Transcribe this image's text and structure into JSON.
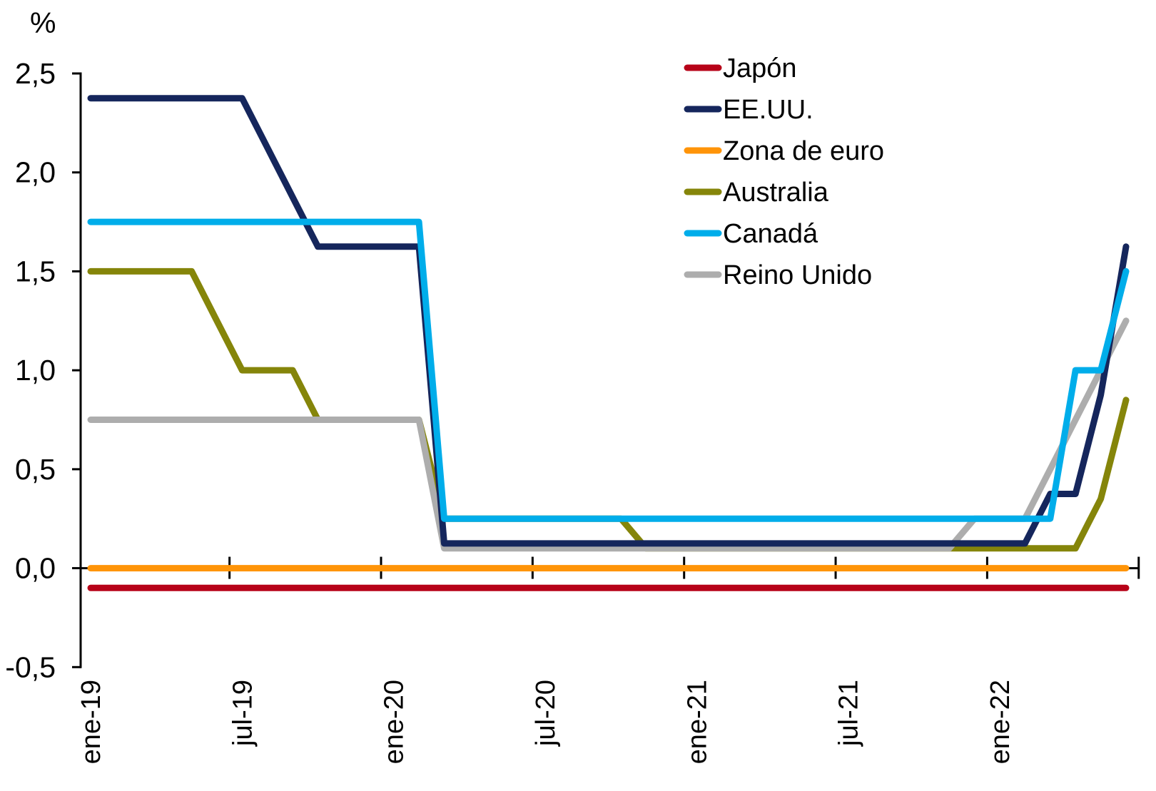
{
  "chart_data": {
    "type": "line",
    "title": "",
    "unit_label": "%",
    "xlabel": "",
    "ylabel": "%",
    "ylim": [
      -0.5,
      2.5
    ],
    "grid": false,
    "legend_position": "top-right-inside",
    "number_format": "comma-decimal",
    "y_ticks": [
      {
        "label": "2,5",
        "value": 2.5
      },
      {
        "label": "2,0",
        "value": 2.0
      },
      {
        "label": "1,5",
        "value": 1.5
      },
      {
        "label": "1,0",
        "value": 1.0
      },
      {
        "label": "0,5",
        "value": 0.5
      },
      {
        "label": "0,0",
        "value": 0.0
      },
      {
        "label": "-0,5",
        "value": -0.5
      }
    ],
    "x_tick_labels": [
      "ene-19",
      "jul-19",
      "ene-20",
      "jul-20",
      "ene-21",
      "jul-21",
      "ene-22"
    ],
    "months": [
      "ene-19",
      "feb-19",
      "mar-19",
      "abr-19",
      "may-19",
      "jun-19",
      "jul-19",
      "ago-19",
      "sep-19",
      "oct-19",
      "nov-19",
      "dic-19",
      "ene-20",
      "feb-20",
      "mar-20",
      "abr-20",
      "may-20",
      "jun-20",
      "jul-20",
      "ago-20",
      "sep-20",
      "oct-20",
      "nov-20",
      "dic-20",
      "ene-21",
      "feb-21",
      "mar-21",
      "abr-21",
      "may-21",
      "jun-21",
      "jul-21",
      "ago-21",
      "sep-21",
      "oct-21",
      "nov-21",
      "dic-21",
      "ene-22",
      "feb-22",
      "mar-22",
      "abr-22",
      "may-22",
      "jun-22"
    ],
    "series": [
      {
        "name": "Japón",
        "color": "#B70218",
        "values": [
          -0.1,
          -0.1,
          -0.1,
          -0.1,
          -0.1,
          -0.1,
          -0.1,
          -0.1,
          -0.1,
          -0.1,
          -0.1,
          -0.1,
          -0.1,
          -0.1,
          -0.1,
          -0.1,
          -0.1,
          -0.1,
          -0.1,
          -0.1,
          -0.1,
          -0.1,
          -0.1,
          -0.1,
          -0.1,
          -0.1,
          -0.1,
          -0.1,
          -0.1,
          -0.1,
          -0.1,
          -0.1,
          -0.1,
          -0.1,
          -0.1,
          -0.1,
          -0.1,
          -0.1,
          -0.1,
          -0.1,
          -0.1,
          -0.1
        ]
      },
      {
        "name": "EE.UU.",
        "color": "#15265C",
        "values": [
          2.375,
          2.375,
          2.375,
          2.375,
          2.375,
          2.375,
          2.375,
          2.125,
          1.875,
          1.625,
          1.625,
          1.625,
          1.625,
          1.625,
          0.125,
          0.125,
          0.125,
          0.125,
          0.125,
          0.125,
          0.125,
          0.125,
          0.125,
          0.125,
          0.125,
          0.125,
          0.125,
          0.125,
          0.125,
          0.125,
          0.125,
          0.125,
          0.125,
          0.125,
          0.125,
          0.125,
          0.125,
          0.125,
          0.375,
          0.375,
          0.875,
          1.625
        ]
      },
      {
        "name": "Zona de euro",
        "color": "#FF9408",
        "values": [
          0,
          0,
          0,
          0,
          0,
          0,
          0,
          0,
          0,
          0,
          0,
          0,
          0,
          0,
          0,
          0,
          0,
          0,
          0,
          0,
          0,
          0,
          0,
          0,
          0,
          0,
          0,
          0,
          0,
          0,
          0,
          0,
          0,
          0,
          0,
          0,
          0,
          0,
          0,
          0,
          0,
          0
        ]
      },
      {
        "name": "Australia",
        "color": "#85850A",
        "values": [
          1.5,
          1.5,
          1.5,
          1.5,
          1.5,
          1.25,
          1.0,
          1.0,
          1.0,
          0.75,
          0.75,
          0.75,
          0.75,
          0.75,
          0.25,
          0.25,
          0.25,
          0.25,
          0.25,
          0.25,
          0.25,
          0.25,
          0.1,
          0.1,
          0.1,
          0.1,
          0.1,
          0.1,
          0.1,
          0.1,
          0.1,
          0.1,
          0.1,
          0.1,
          0.1,
          0.1,
          0.1,
          0.1,
          0.1,
          0.1,
          0.35,
          0.85
        ]
      },
      {
        "name": "Canadá",
        "color": "#00ADEA",
        "values": [
          1.75,
          1.75,
          1.75,
          1.75,
          1.75,
          1.75,
          1.75,
          1.75,
          1.75,
          1.75,
          1.75,
          1.75,
          1.75,
          1.75,
          0.25,
          0.25,
          0.25,
          0.25,
          0.25,
          0.25,
          0.25,
          0.25,
          0.25,
          0.25,
          0.25,
          0.25,
          0.25,
          0.25,
          0.25,
          0.25,
          0.25,
          0.25,
          0.25,
          0.25,
          0.25,
          0.25,
          0.25,
          0.25,
          0.25,
          1.0,
          1.0,
          1.5
        ]
      },
      {
        "name": "Reino Unido",
        "color": "#ADADAD",
        "values": [
          0.75,
          0.75,
          0.75,
          0.75,
          0.75,
          0.75,
          0.75,
          0.75,
          0.75,
          0.75,
          0.75,
          0.75,
          0.75,
          0.75,
          0.1,
          0.1,
          0.1,
          0.1,
          0.1,
          0.1,
          0.1,
          0.1,
          0.1,
          0.1,
          0.1,
          0.1,
          0.1,
          0.1,
          0.1,
          0.1,
          0.1,
          0.1,
          0.1,
          0.1,
          0.1,
          0.25,
          0.25,
          0.25,
          0.5,
          0.75,
          1.0,
          1.25
        ]
      }
    ],
    "draw_order": [
      "Japón",
      "Zona de euro",
      "Australia",
      "Reino Unido",
      "EE.UU.",
      "Canadá"
    ],
    "axis_color": "#000000"
  }
}
